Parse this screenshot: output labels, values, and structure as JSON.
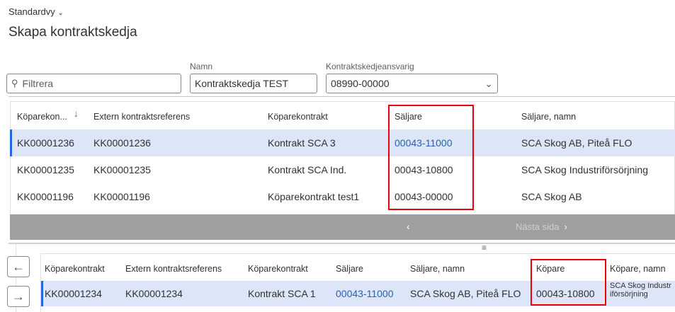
{
  "header": {
    "view_label": "Standardvy",
    "title": "Skapa kontraktskedja"
  },
  "filters": {
    "filter_placeholder": "Filtrera",
    "name_label": "Namn",
    "name_value": "Kontraktskedja TEST",
    "owner_label": "Kontraktskedjeansvarig",
    "owner_value": "08990-00000"
  },
  "grid1": {
    "columns": [
      "Köparekon...",
      "Extern kontraktsreferens",
      "Köparekontrakt",
      "Säljare",
      "Säljare, namn"
    ],
    "rows": [
      [
        "KK00001236",
        "KK00001236",
        "Kontrakt SCA 3",
        "00043-11000",
        "SCA Skog AB, Piteå FLO"
      ],
      [
        "KK00001235",
        "KK00001235",
        "Kontrakt SCA Ind.",
        "00043-10800",
        "SCA Skog Industriförsörjning"
      ],
      [
        "KK00001196",
        "KK00001196",
        "Köparekontrakt test1",
        "00043-00000",
        "SCA Skog AB"
      ]
    ],
    "next_page": "Nästa sida"
  },
  "grid2": {
    "columns": [
      "Köparekontrakt",
      "Extern kontraktsreferens",
      "Köparekontrakt",
      "Säljare",
      "Säljare, namn",
      "Köpare",
      "Köpare, namn"
    ],
    "rows": [
      [
        "KK00001234",
        "KK00001234",
        "Kontrakt SCA 1",
        "00043-11000",
        "SCA Skog AB, Piteå FLO",
        "00043-10800",
        "SCA Skog Industriförsörjning"
      ]
    ]
  },
  "colors": {
    "accent": "#2266e3",
    "highlight": "#e8000b",
    "selected_row": "#dce6f8",
    "pager": "#a19f9d"
  }
}
